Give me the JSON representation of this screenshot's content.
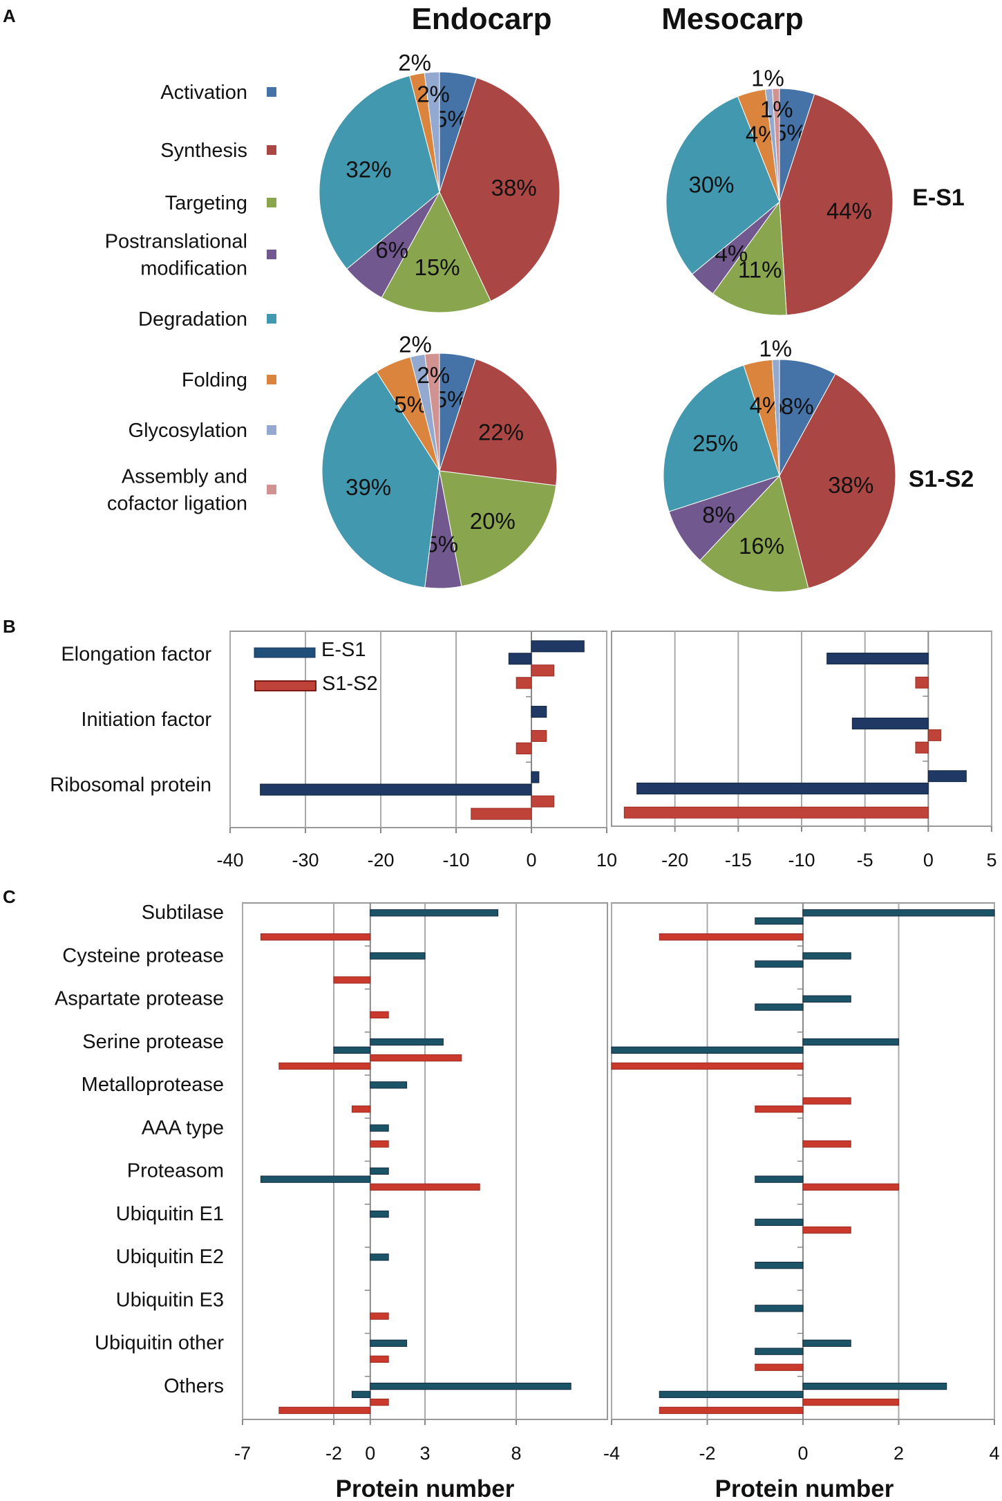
{
  "panels": {
    "a": "A",
    "b": "B",
    "c": "C"
  },
  "panel_a": {
    "columns": [
      "Endocarp",
      "Mesocarp"
    ],
    "rows": [
      "E-S1",
      "S1-S2"
    ],
    "legend": [
      {
        "label": [
          "Activation"
        ],
        "color": "#4572A7"
      },
      {
        "label": [
          "Synthesis"
        ],
        "color": "#AA4643"
      },
      {
        "label": [
          "Targeting"
        ],
        "color": "#89A54E"
      },
      {
        "label": [
          "Postranslational",
          "modification"
        ],
        "color": "#71588F"
      },
      {
        "label": [
          "Degradation"
        ],
        "color": "#4198AF"
      },
      {
        "label": [
          "Folding"
        ],
        "color": "#DB843D"
      },
      {
        "label": [
          "Glycosylation"
        ],
        "color": "#93A9CF"
      },
      {
        "label": [
          "Assembly and",
          "cofactor ligation"
        ],
        "color": "#D19392"
      }
    ]
  },
  "panel_b": {
    "categories": [
      "Elongation factor",
      "Initiation factor",
      "Ribosomal protein"
    ],
    "legend": [
      {
        "name": "E-S1",
        "color": "#1F3864"
      },
      {
        "name": "S1-S2",
        "color": "#C0433A"
      }
    ]
  },
  "panel_c": {
    "categories": [
      "Subtilase",
      "Cysteine protease",
      "Aspartate protease",
      "Serine protease",
      "Metalloprotease",
      "AAA type",
      "Proteasom",
      "Ubiquitin E1",
      "Ubiquitin E2",
      "Ubiquitin E3",
      "Ubiquitin other",
      "Others"
    ],
    "xlabel": "Protein number",
    "colors": {
      "E-S1": "#1B5467",
      "S1-S2": "#C9392C"
    }
  },
  "chart_data": [
    {
      "type": "pie",
      "title": "Endocarp E-S1",
      "values": [
        5,
        38,
        15,
        6,
        32,
        2,
        2,
        0
      ]
    },
    {
      "type": "pie",
      "title": "Mesocarp E-S1",
      "values": [
        5,
        44,
        11,
        4,
        30,
        4,
        1,
        1
      ]
    },
    {
      "type": "pie",
      "title": "Endocarp S1-S2",
      "values": [
        5,
        22,
        20,
        5,
        39,
        5,
        2,
        2
      ]
    },
    {
      "type": "pie",
      "title": "Mesocarp S1-S2",
      "values": [
        8,
        38,
        16,
        8,
        25,
        4,
        1,
        0
      ]
    },
    {
      "type": "bar",
      "title": "B Endocarp",
      "xlim": [
        -40,
        10
      ],
      "ticks": [
        -40,
        -30,
        -20,
        -10,
        0,
        10
      ],
      "series": [
        {
          "name": "E-S1",
          "up": [
            7,
            2,
            1
          ],
          "down": [
            -3,
            0,
            -36
          ]
        },
        {
          "name": "S1-S2",
          "up": [
            3,
            2,
            3
          ],
          "down": [
            -2,
            -2,
            -8
          ]
        }
      ]
    },
    {
      "type": "bar",
      "title": "B Mesocarp",
      "xlim": [
        -25,
        5
      ],
      "ticks": [
        -20,
        -15,
        -10,
        -5,
        0,
        5
      ],
      "series": [
        {
          "name": "E-S1",
          "up": [
            0,
            0,
            3
          ],
          "down": [
            -8,
            -6,
            -23
          ]
        },
        {
          "name": "S1-S2",
          "up": [
            0,
            1,
            0
          ],
          "down": [
            -1,
            -1,
            -24
          ]
        }
      ]
    },
    {
      "type": "bar",
      "title": "C Endocarp",
      "xlim": [
        -7,
        13
      ],
      "ticks": [
        -7,
        -2,
        0,
        3,
        8
      ],
      "series": [
        {
          "name": "E-S1",
          "up": [
            7,
            3,
            0,
            4,
            2,
            1,
            1,
            1,
            1,
            0,
            2,
            11
          ],
          "down": [
            0,
            0,
            0,
            -2,
            0,
            0,
            -6,
            0,
            0,
            0,
            0,
            -1
          ]
        },
        {
          "name": "S1-S2",
          "up": [
            0,
            0,
            1,
            5,
            0,
            1,
            6,
            0,
            0,
            1,
            1,
            1
          ],
          "down": [
            -6,
            -2,
            0,
            -5,
            -1,
            0,
            0,
            0,
            0,
            0,
            0,
            -5
          ]
        }
      ]
    },
    {
      "type": "bar",
      "title": "C Mesocarp",
      "xlim": [
        -4,
        4
      ],
      "ticks": [
        -4,
        -2,
        0,
        2,
        4
      ],
      "series": [
        {
          "name": "E-S1",
          "up": [
            4,
            1,
            1,
            2,
            0,
            0,
            0,
            0,
            0,
            0,
            1,
            3
          ],
          "down": [
            -1,
            -1,
            -1,
            -4,
            0,
            0,
            -1,
            -1,
            -1,
            -1,
            -1,
            -3
          ]
        },
        {
          "name": "S1-S2",
          "up": [
            0,
            0,
            0,
            0,
            1,
            1,
            2,
            1,
            0,
            0,
            0,
            2
          ],
          "down": [
            -3,
            0,
            0,
            -4,
            -1,
            0,
            0,
            0,
            0,
            0,
            -1,
            -3
          ]
        }
      ]
    }
  ]
}
